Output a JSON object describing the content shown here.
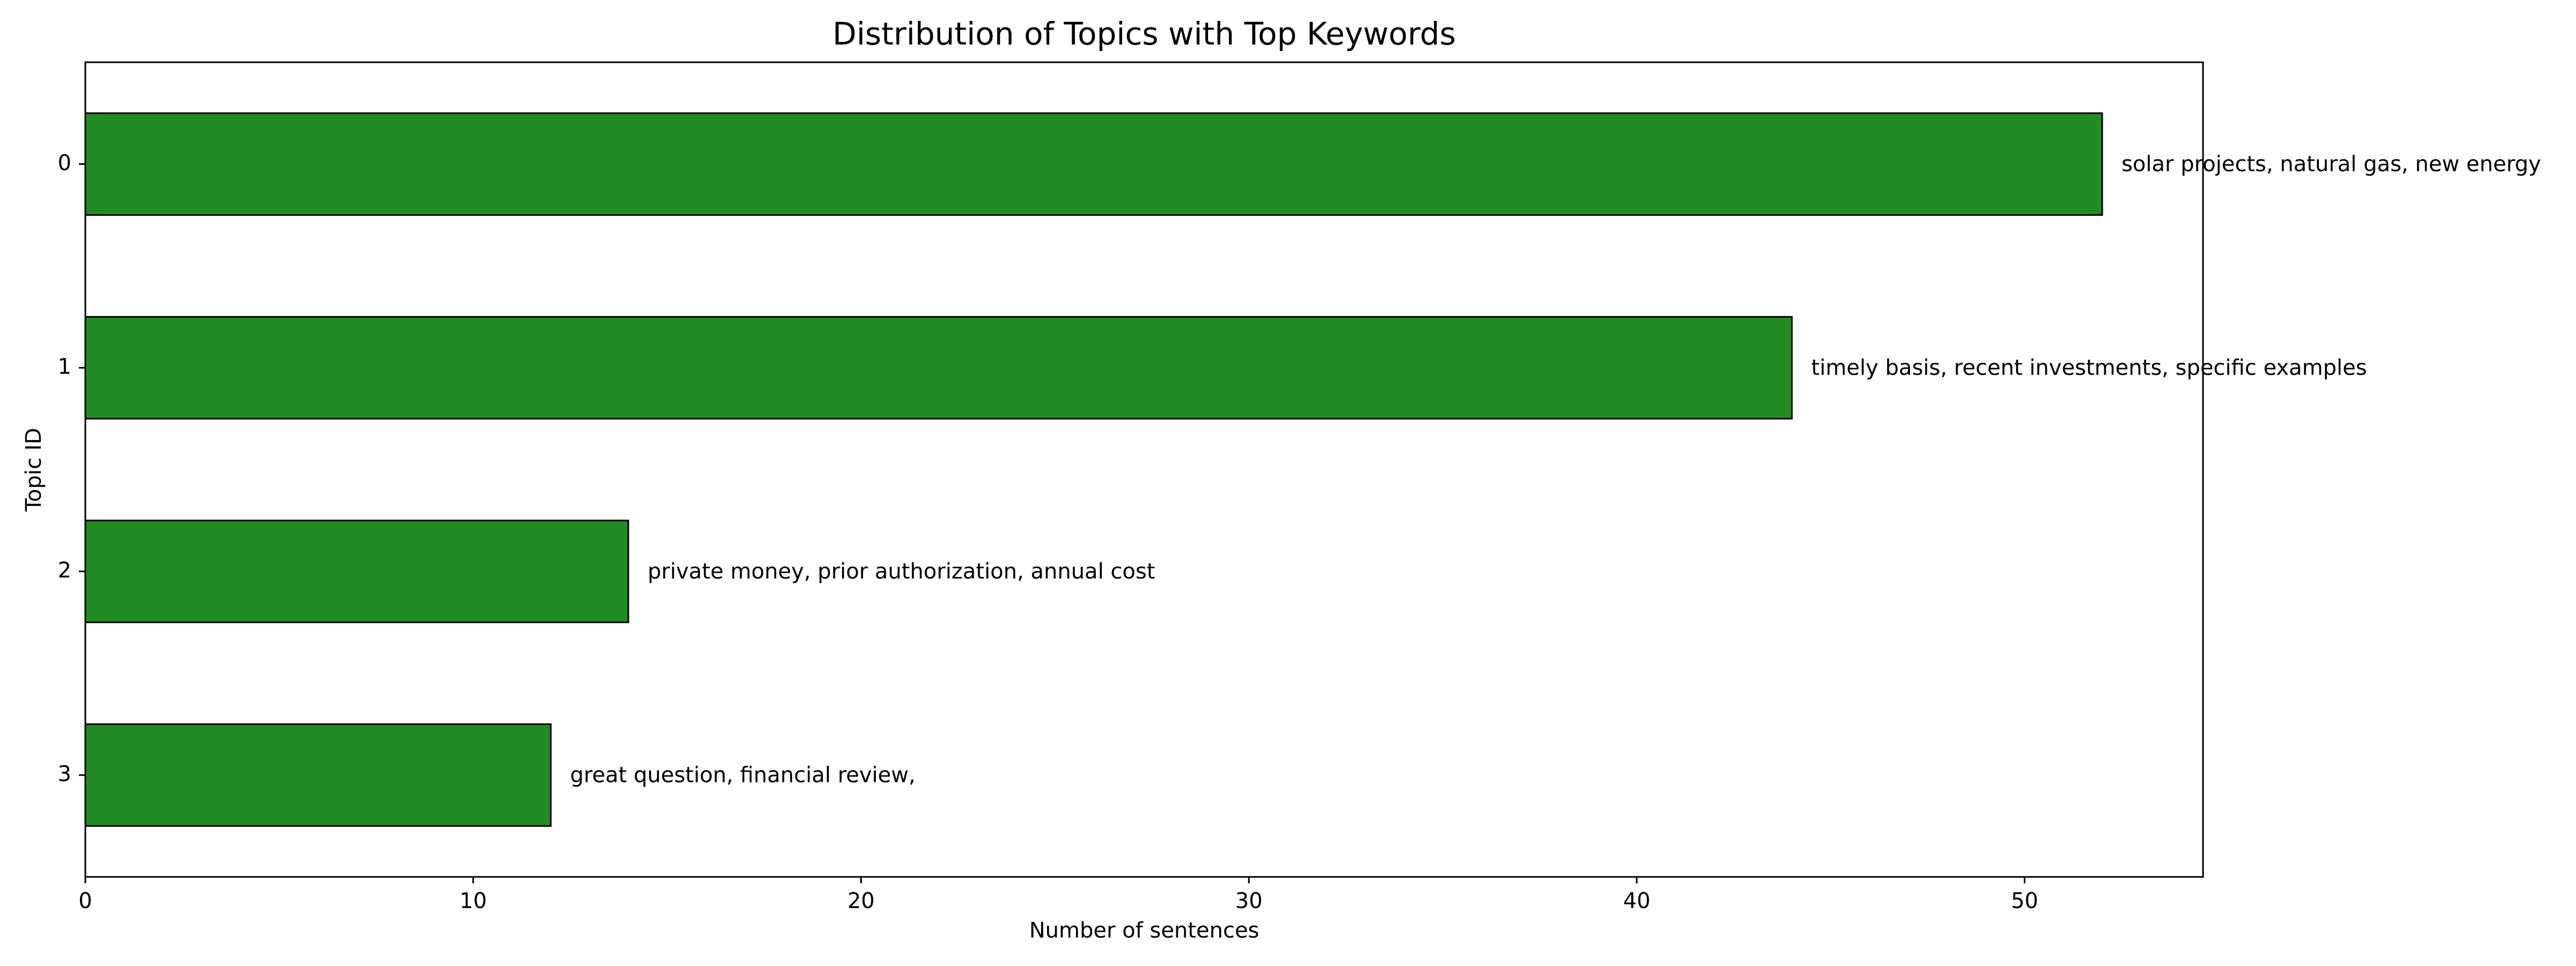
{
  "chart_data": {
    "type": "bar",
    "orientation": "horizontal",
    "title": "Distribution of Topics with Top Keywords",
    "xlabel": "Number of sentences",
    "ylabel": "Topic ID",
    "categories": [
      "0",
      "1",
      "2",
      "3"
    ],
    "values": [
      52,
      44,
      14,
      12
    ],
    "annotations": [
      "solar projects, natural gas, new energy",
      "timely basis, recent investments, specific examples",
      "private money, prior authorization, annual cost",
      "great question, financial review,"
    ],
    "xlim": [
      0,
      54.6
    ],
    "x_ticks": [
      0,
      10,
      20,
      30,
      40,
      50
    ],
    "grid": false,
    "legend": "none",
    "bar_color": "#228b22",
    "edge_color": "#000000"
  }
}
